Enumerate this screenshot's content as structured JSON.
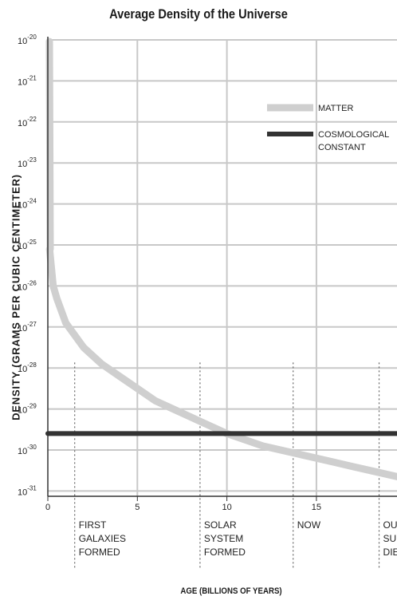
{
  "chart_data": {
    "type": "line",
    "title": "Average Density of the Universe",
    "xlabel": "AGE (BILLIONS OF YEARS)",
    "ylabel": "DENSITY (GRAMS PER CUBIC CENTIMETER)",
    "x_ticks": [
      {
        "value": 0,
        "label": "0"
      },
      {
        "value": 5,
        "label": "5"
      },
      {
        "value": 10,
        "label": "10"
      },
      {
        "value": 15,
        "label": "15"
      }
    ],
    "y_ticks": [
      {
        "exp": -20,
        "base": "10",
        "sup": "-20"
      },
      {
        "exp": -21,
        "base": "10",
        "sup": "-21"
      },
      {
        "exp": -22,
        "base": "10",
        "sup": "-22"
      },
      {
        "exp": -23,
        "base": "10",
        "sup": "-23"
      },
      {
        "exp": -24,
        "base": "10",
        "sup": "-24"
      },
      {
        "exp": -25,
        "base": "10",
        "sup": "-25"
      },
      {
        "exp": -26,
        "base": "10",
        "sup": "-26"
      },
      {
        "exp": -27,
        "base": "10",
        "sup": "-27"
      },
      {
        "exp": -28,
        "base": "10",
        "sup": "-28"
      },
      {
        "exp": -29,
        "base": "10",
        "sup": "-29"
      },
      {
        "exp": -30,
        "base": "10",
        "sup": "-30"
      },
      {
        "exp": -31,
        "base": "10",
        "sup": "-31"
      }
    ],
    "xlim": [
      0,
      19.5
    ],
    "ylim_exponent": [
      -31.3,
      -20
    ],
    "y_scale": "log",
    "grid": true,
    "legend_position": "top-right",
    "series": [
      {
        "name": "MATTER",
        "color": "#cfcfcf",
        "x": [
          0.1,
          0.3,
          0.5,
          1,
          2,
          3,
          4,
          5,
          6,
          7,
          8,
          9,
          10,
          11,
          12,
          13,
          14,
          15,
          16,
          17,
          18,
          19.5
        ],
        "log10_y": [
          -25.1,
          -26.0,
          -26.3,
          -26.9,
          -27.5,
          -27.9,
          -28.2,
          -28.5,
          -28.8,
          -29.0,
          -29.2,
          -29.4,
          -29.6,
          -29.75,
          -29.9,
          -30.0,
          -30.1,
          -30.2,
          -30.3,
          -30.4,
          -30.5,
          -30.65
        ]
      },
      {
        "name": "COSMOLOGICAL CONSTANT",
        "color": "#333333",
        "x": [
          0,
          19.5
        ],
        "log10_y": [
          -29.6,
          -29.6
        ]
      }
    ],
    "annotations": [
      {
        "x": 1.5,
        "lines": [
          "FIRST",
          "GALAXIES",
          "FORMED"
        ]
      },
      {
        "x": 8.5,
        "lines": [
          "SOLAR",
          "SYSTEM",
          "FORMED"
        ]
      },
      {
        "x": 13.7,
        "lines": [
          "NOW"
        ]
      },
      {
        "x": 18.5,
        "lines": [
          "OUR",
          "SUN",
          "DIES"
        ]
      }
    ],
    "colors": {
      "grid": "#c8c8c8",
      "axis": "#333333",
      "matter": "#cfcfcf",
      "constant": "#333333"
    }
  }
}
